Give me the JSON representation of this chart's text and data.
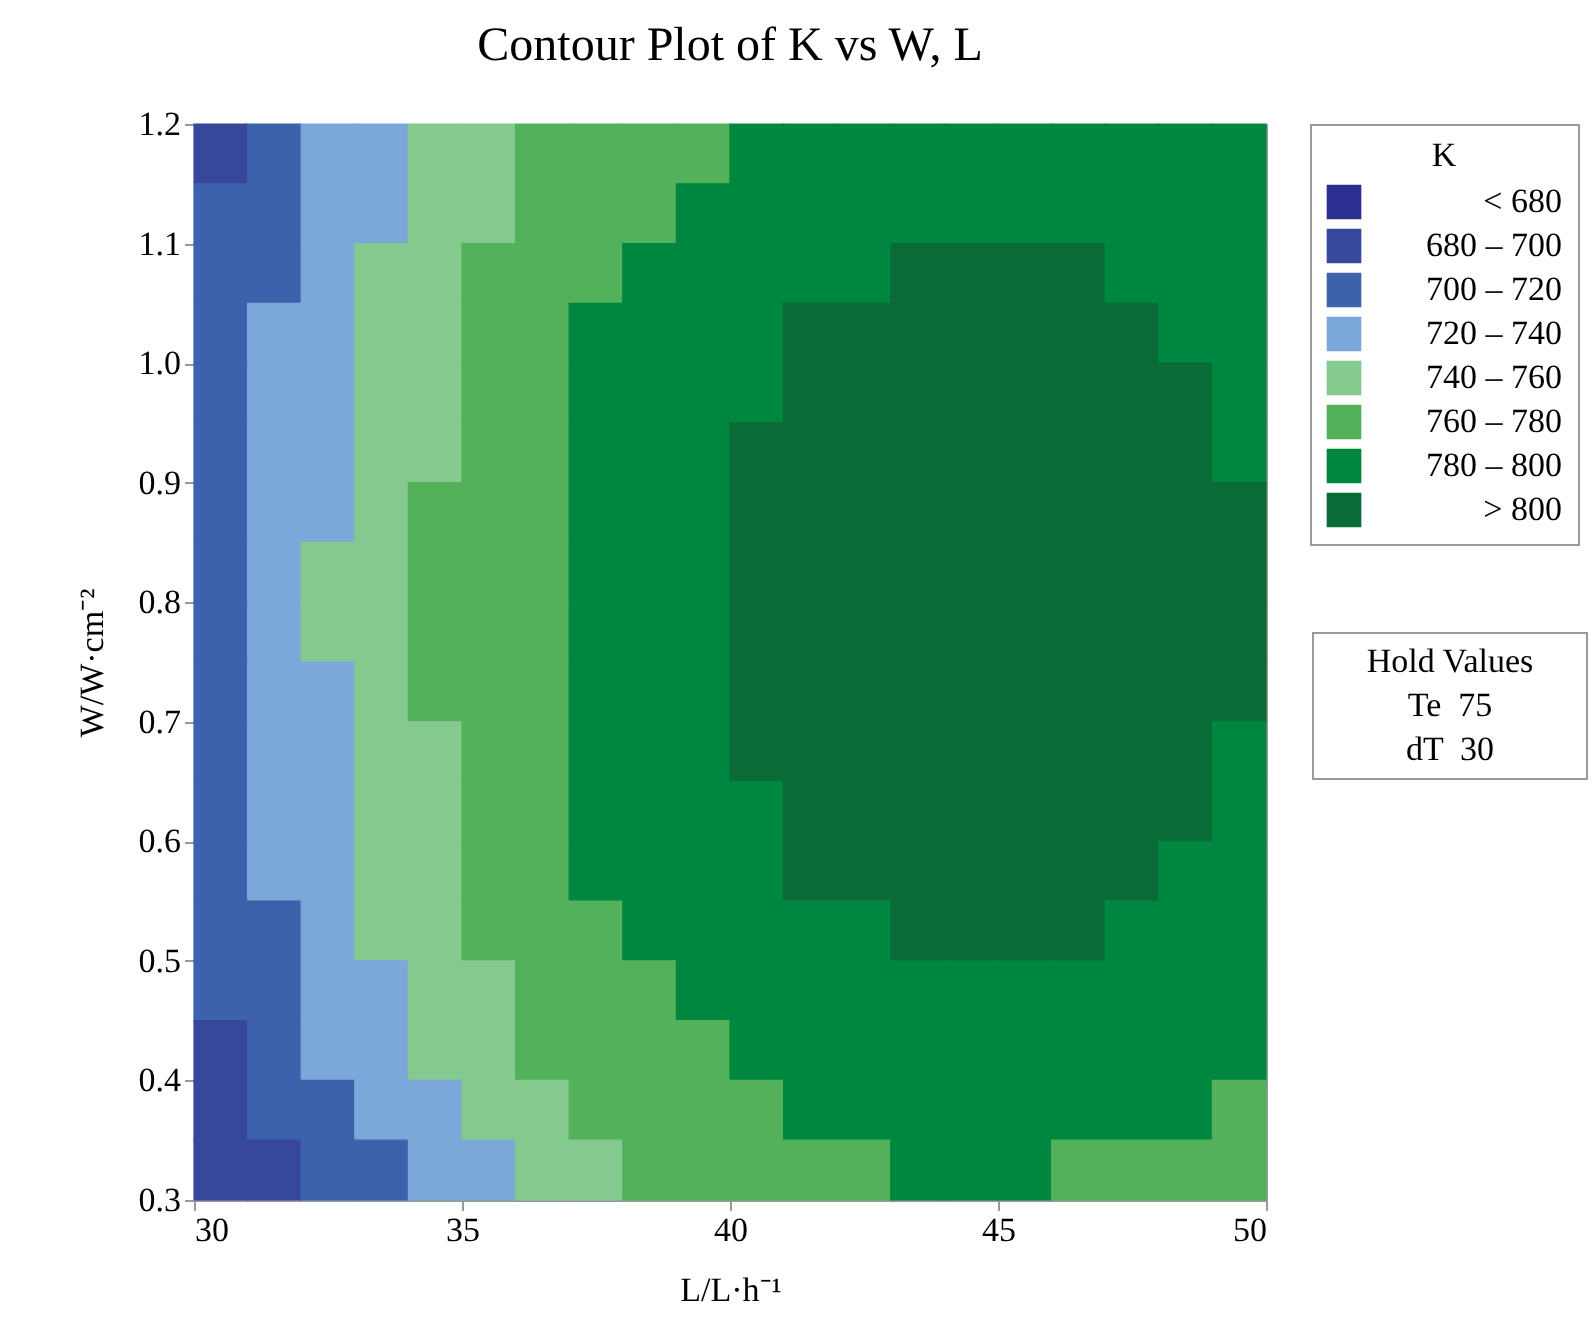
{
  "chart_data": {
    "type": "heatmap",
    "title": "Contour Plot of K vs W, L",
    "xlabel": "L/L·h⁻¹",
    "ylabel": "W/W·cm⁻²",
    "legend_title": "K",
    "clim": [
      660,
      820
    ],
    "annotations": [
      "Hold Values",
      "Te  75",
      "dT  30"
    ],
    "xlim": [
      30,
      50
    ],
    "xticks": [
      30,
      35,
      40,
      45,
      50
    ],
    "ylim": [
      0.3,
      1.2
    ],
    "yticks": [
      {
        "value": 0.3,
        "label": "0.3"
      },
      {
        "value": 0.4,
        "label": "0.4"
      },
      {
        "value": 0.5,
        "label": "0.5"
      },
      {
        "value": 0.6,
        "label": "0.6"
      },
      {
        "value": 0.7,
        "label": "0.7"
      },
      {
        "value": 0.8,
        "label": "0.8"
      },
      {
        "value": 0.9,
        "label": "0.9"
      },
      {
        "value": 1,
        "label": "1.0"
      },
      {
        "value": 1.1,
        "label": "1.1"
      },
      {
        "value": 1.2,
        "label": "1.2"
      }
    ],
    "cticks": [
      {
        "value": 670,
        "label": "< 680"
      },
      {
        "value": 690,
        "label": "680 – 700"
      },
      {
        "value": 710,
        "label": "700 – 720"
      },
      {
        "value": 730,
        "label": "720 – 740"
      },
      {
        "value": 750,
        "label": "740 – 760"
      },
      {
        "value": 770,
        "label": "760 – 780"
      },
      {
        "value": 790,
        "label": "780 – 800"
      },
      {
        "value": 810,
        "label": "> 800"
      }
    ],
    "colors": [
      "#2b2f8f",
      "#37479b",
      "#3d62ab",
      "#7ba7d9",
      "#84c98e",
      "#52b15a",
      "#00873f",
      "#0a6b37"
    ],
    "x": [
      30.5,
      31.5,
      32.5,
      33.5,
      34.5,
      35.5,
      36.5,
      37.5,
      38.5,
      39.5,
      40.5,
      41.5,
      42.5,
      43.5,
      44.5,
      45.5,
      46.5,
      47.5,
      48.5,
      49.5
    ],
    "y": [
      1.175,
      1.125,
      1.075,
      1.025,
      0.975,
      0.925,
      0.875,
      0.825,
      0.775,
      0.725,
      0.675,
      0.625,
      0.575,
      0.525,
      0.475,
      0.425,
      0.375,
      0.325
    ],
    "cells": [
      [
        690,
        710,
        730,
        730,
        750,
        750,
        770,
        770,
        770,
        770,
        790,
        790,
        790,
        790,
        790,
        790,
        790,
        790,
        790,
        790
      ],
      [
        710,
        710,
        730,
        730,
        750,
        750,
        770,
        770,
        770,
        790,
        790,
        790,
        790,
        790,
        790,
        790,
        790,
        790,
        790,
        790
      ],
      [
        710,
        710,
        730,
        750,
        750,
        770,
        770,
        770,
        790,
        790,
        790,
        790,
        790,
        810,
        810,
        810,
        810,
        790,
        790,
        790
      ],
      [
        710,
        730,
        730,
        750,
        750,
        770,
        770,
        790,
        790,
        790,
        790,
        810,
        810,
        810,
        810,
        810,
        810,
        810,
        790,
        790
      ],
      [
        710,
        730,
        730,
        750,
        750,
        770,
        770,
        790,
        790,
        790,
        790,
        810,
        810,
        810,
        810,
        810,
        810,
        810,
        810,
        790
      ],
      [
        710,
        730,
        730,
        750,
        750,
        770,
        770,
        790,
        790,
        790,
        810,
        810,
        810,
        810,
        810,
        810,
        810,
        810,
        810,
        790
      ],
      [
        710,
        730,
        730,
        750,
        770,
        770,
        770,
        790,
        790,
        790,
        810,
        810,
        810,
        810,
        810,
        810,
        810,
        810,
        810,
        810
      ],
      [
        710,
        730,
        750,
        750,
        770,
        770,
        770,
        790,
        790,
        790,
        810,
        810,
        810,
        810,
        810,
        810,
        810,
        810,
        810,
        810
      ],
      [
        710,
        730,
        750,
        750,
        770,
        770,
        770,
        790,
        790,
        790,
        810,
        810,
        810,
        810,
        810,
        810,
        810,
        810,
        810,
        810
      ],
      [
        710,
        730,
        730,
        750,
        770,
        770,
        770,
        790,
        790,
        790,
        810,
        810,
        810,
        810,
        810,
        810,
        810,
        810,
        810,
        810
      ],
      [
        710,
        730,
        730,
        750,
        750,
        770,
        770,
        790,
        790,
        790,
        810,
        810,
        810,
        810,
        810,
        810,
        810,
        810,
        810,
        790
      ],
      [
        710,
        730,
        730,
        750,
        750,
        770,
        770,
        790,
        790,
        790,
        790,
        810,
        810,
        810,
        810,
        810,
        810,
        810,
        810,
        790
      ],
      [
        710,
        730,
        730,
        750,
        750,
        770,
        770,
        790,
        790,
        790,
        790,
        810,
        810,
        810,
        810,
        810,
        810,
        810,
        790,
        790
      ],
      [
        710,
        710,
        730,
        750,
        750,
        770,
        770,
        770,
        790,
        790,
        790,
        790,
        790,
        810,
        810,
        810,
        810,
        790,
        790,
        790
      ],
      [
        710,
        710,
        730,
        730,
        750,
        750,
        770,
        770,
        770,
        790,
        790,
        790,
        790,
        790,
        790,
        790,
        790,
        790,
        790,
        790
      ],
      [
        690,
        710,
        730,
        730,
        750,
        750,
        770,
        770,
        770,
        770,
        790,
        790,
        790,
        790,
        790,
        790,
        790,
        790,
        790,
        790
      ],
      [
        690,
        710,
        710,
        730,
        730,
        750,
        750,
        770,
        770,
        770,
        770,
        790,
        790,
        790,
        790,
        790,
        790,
        790,
        790,
        770
      ],
      [
        690,
        690,
        710,
        710,
        730,
        730,
        750,
        750,
        770,
        770,
        770,
        770,
        770,
        790,
        790,
        790,
        770,
        770,
        770,
        770
      ]
    ]
  }
}
